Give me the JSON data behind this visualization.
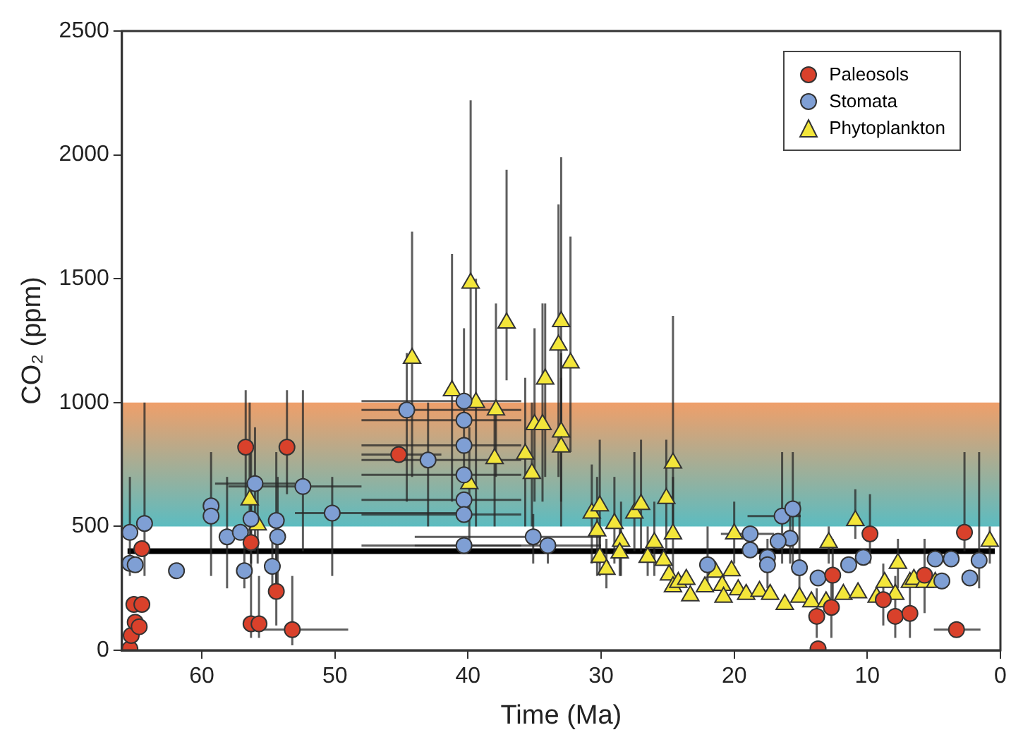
{
  "chart_data": {
    "type": "scatter",
    "xlabel": "Time (Ma)",
    "ylabel": "CO₂ (ppm)",
    "xlim": [
      66,
      0
    ],
    "xticks": [
      60,
      50,
      40,
      30,
      20,
      10,
      0
    ],
    "ylim": [
      0,
      2500
    ],
    "yticks": [
      0,
      500,
      1000,
      1500,
      2000,
      2500
    ],
    "grid": false,
    "legend": "top right",
    "bands": [
      {
        "axis": "y",
        "from": 500,
        "to": 1000,
        "color": "#ef9f6a"
      }
    ],
    "ref_lines": [
      {
        "axis": "y",
        "value": 400,
        "color": "#000000"
      }
    ],
    "series": [
      {
        "name": "Paleosols",
        "color": "#d9412b",
        "marker": "circle",
        "x": [
          65.4,
          65.3,
          65,
          64.7,
          65.1,
          64.5,
          64.5,
          56.7,
          53.6,
          56.3,
          54.4,
          56.3,
          55.7,
          53.2,
          45.2,
          9.8,
          2.7,
          12.6,
          12.7,
          13.8,
          13.7,
          7.9,
          6.8,
          3.3,
          5.7,
          8.8
        ],
        "values": [
          6,
          60,
          113,
          95,
          185,
          185,
          410,
          820,
          820,
          435,
          238,
          107,
          107,
          83,
          790,
          470,
          476,
          303,
          173,
          137,
          6,
          137,
          149,
          83,
          303,
          204
        ],
        "errors": [
          null,
          null,
          null,
          null,
          null,
          null,
          null,
          [
            600,
            1050
          ],
          [
            630,
            1050
          ],
          [
            300,
            600
          ],
          [
            100,
            400
          ],
          [
            50,
            300
          ],
          [
            50,
            300
          ],
          [
            20,
            300
          ],
          null,
          [
            350,
            630
          ],
          [
            400,
            800
          ],
          [
            150,
            450
          ],
          [
            50,
            300
          ],
          [
            50,
            250
          ],
          null,
          [
            50,
            300
          ],
          [
            50,
            300
          ],
          null,
          [
            150,
            450
          ],
          [
            100,
            350
          ]
        ],
        "xerrors": [
          null,
          null,
          null,
          null,
          null,
          null,
          null,
          null,
          null,
          null,
          null,
          null,
          null,
          [
            56,
            49
          ],
          [
            48,
            42
          ],
          null,
          null,
          null,
          null,
          null,
          null,
          null,
          null,
          [
            5,
            1.5
          ],
          null,
          null
        ]
      },
      {
        "name": "Stomata",
        "color": "#7f9fd4",
        "marker": "circle",
        "x": [
          65.4,
          64.3,
          65.4,
          65,
          61.9,
          59.3,
          59.3,
          58.1,
          57.1,
          56,
          56.3,
          56.8,
          54.7,
          54.4,
          54.3,
          52.4,
          50.2,
          44.6,
          43,
          40.3,
          40.3,
          40.3,
          40.3,
          40.3,
          40.3,
          40.3,
          35.1,
          34,
          16.4,
          15.6,
          15.8,
          16.7,
          18.8,
          18.8,
          22,
          17.5,
          17.5,
          15.1,
          13.7,
          11.4,
          10.3,
          4.9,
          3.7,
          1.6,
          2.3,
          4.4
        ],
        "values": [
          476,
          512,
          351,
          345,
          321,
          583,
          542,
          458,
          476,
          673,
          530,
          321,
          339,
          524,
          458,
          661,
          554,
          970,
          768,
          1006,
          929,
          827,
          708,
          607,
          548,
          423,
          458,
          423,
          542,
          571,
          452,
          440,
          470,
          405,
          345,
          375,
          345,
          333,
          292,
          345,
          375,
          369,
          369,
          363,
          292,
          280
        ],
        "errors": [
          [
            300,
            700
          ],
          [
            300,
            1000
          ],
          null,
          null,
          null,
          [
            300,
            800
          ],
          null,
          [
            250,
            700
          ],
          null,
          [
            400,
            900
          ],
          [
            350,
            800
          ],
          [
            250,
            450
          ],
          [
            250,
            450
          ],
          [
            250,
            800
          ],
          [
            250,
            700
          ],
          [
            400,
            1050
          ],
          [
            300,
            700
          ],
          [
            600,
            1200
          ],
          [
            500,
            1000
          ],
          [
            700,
            1300
          ],
          null,
          null,
          null,
          null,
          null,
          null,
          [
            350,
            550
          ],
          [
            350,
            450
          ],
          [
            350,
            800
          ],
          [
            350,
            800
          ],
          [
            350,
            550
          ],
          null,
          null,
          null,
          [
            250,
            500
          ],
          [
            250,
            450
          ],
          null,
          [
            250,
            600
          ],
          null,
          null,
          null,
          null,
          null,
          [
            250,
            800
          ],
          null,
          null
        ],
        "xerrors": [
          null,
          null,
          null,
          null,
          null,
          null,
          null,
          null,
          null,
          [
            59,
            53
          ],
          null,
          null,
          null,
          null,
          null,
          [
            58,
            48
          ],
          [
            53,
            40
          ],
          [
            48,
            36
          ],
          [
            48,
            36
          ],
          [
            48,
            36
          ],
          [
            48,
            36
          ],
          [
            48,
            36
          ],
          [
            48,
            36
          ],
          [
            48,
            36
          ],
          [
            48,
            36
          ],
          [
            48,
            36
          ],
          [
            44,
            30
          ],
          [
            44,
            30
          ],
          [
            19,
            15
          ],
          null,
          null,
          null,
          [
            21,
            17
          ],
          null,
          null,
          null,
          null,
          null,
          null,
          null,
          null,
          null,
          null,
          null,
          null,
          null
        ]
      },
      {
        "name": "Phytoplankton",
        "color": "#f3e63a",
        "marker": "triangle",
        "x": [
          56.4,
          55.8,
          44.2,
          39.8,
          37.1,
          33,
          33.2,
          32.3,
          34.2,
          41.2,
          39.4,
          37.9,
          38,
          39.9,
          35.7,
          35.2,
          35,
          34.4,
          33,
          33,
          30.7,
          30.1,
          30.3,
          29,
          27.5,
          27,
          28.5,
          30.1,
          29.6,
          28.6,
          26.5,
          24.6,
          25.1,
          24.6,
          26,
          25.3,
          24.9,
          24.6,
          24.2,
          23.6,
          23.3,
          22.2,
          21.4,
          20.9,
          20.8,
          20,
          20.2,
          19.7,
          19.1,
          18.1,
          17.3,
          16.2,
          15.1,
          14.2,
          12.9,
          13.1,
          11.8,
          10.9,
          10.7,
          9.3,
          8.7,
          7.7,
          7.9,
          6.8,
          6.5,
          5.7,
          4.9,
          0.8
        ],
        "values": [
          607,
          506,
          1179,
          1482,
          1321,
          1327,
          1232,
          1160,
          1095,
          1048,
          1000,
          970,
          774,
          673,
          792,
          714,
          911,
          911,
          881,
          821,
          554,
          583,
          482,
          512,
          554,
          589,
          440,
          375,
          327,
          393,
          375,
          756,
          613,
          470,
          435,
          363,
          304,
          256,
          274,
          286,
          220,
          256,
          315,
          262,
          214,
          470,
          321,
          244,
          226,
          238,
          226,
          185,
          214,
          196,
          435,
          196,
          226,
          524,
          232,
          214,
          274,
          351,
          226,
          274,
          286,
          274,
          274,
          440
        ],
        "errors": [
          [
            400,
            1000
          ],
          [
            350,
            700
          ],
          [
            700,
            1690
          ],
          [
            1000,
            2220
          ],
          [
            1090,
            1940
          ],
          [
            800,
            1990
          ],
          [
            700,
            1800
          ],
          [
            800,
            1670
          ],
          [
            700,
            1400
          ],
          [
            600,
            1600
          ],
          [
            500,
            1500
          ],
          [
            700,
            1400
          ],
          [
            500,
            1000
          ],
          [
            400,
            900
          ],
          [
            500,
            1100
          ],
          [
            500,
            1000
          ],
          [
            600,
            1300
          ],
          [
            600,
            1400
          ],
          [
            500,
            1200
          ],
          [
            600,
            1100
          ],
          [
            350,
            750
          ],
          [
            350,
            850
          ],
          [
            300,
            700
          ],
          [
            350,
            700
          ],
          [
            400,
            800
          ],
          [
            400,
            850
          ],
          [
            300,
            600
          ],
          [
            300,
            500
          ],
          [
            250,
            450
          ],
          [
            300,
            500
          ],
          [
            300,
            500
          ],
          [
            500,
            1350
          ],
          [
            400,
            850
          ],
          [
            300,
            700
          ],
          [
            300,
            600
          ],
          null,
          null,
          null,
          null,
          null,
          null,
          null,
          null,
          null,
          null,
          [
            350,
            600
          ],
          null,
          null,
          null,
          null,
          null,
          null,
          null,
          null,
          [
            350,
            500
          ],
          null,
          null,
          [
            450,
            650
          ],
          null,
          null,
          null,
          [
            250,
            450
          ],
          null,
          null,
          null,
          null,
          null,
          [
            350,
            500
          ]
        ]
      }
    ]
  }
}
